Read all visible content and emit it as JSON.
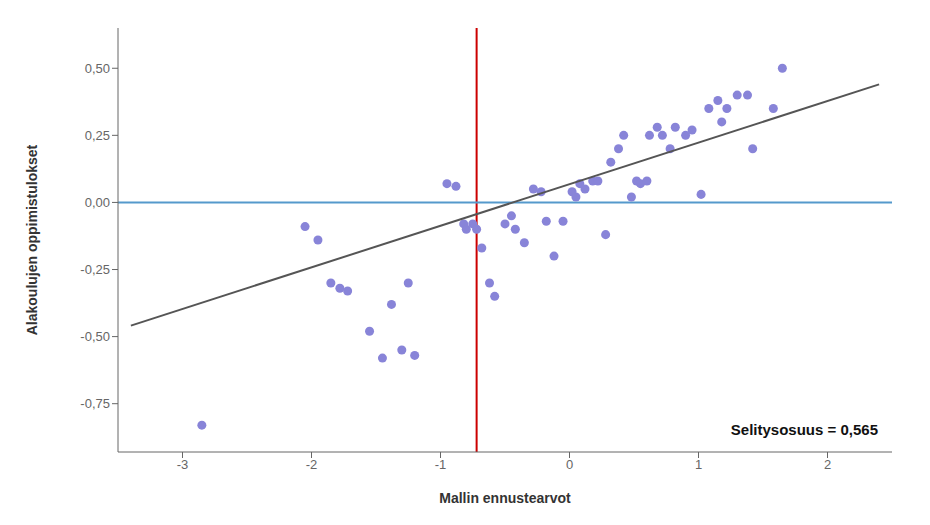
{
  "chart_data": {
    "type": "scatter",
    "xlabel": "Mallin ennustearvot",
    "ylabel": "Alakoulujen oppimistulokset",
    "annotation": "Selitysosuus = 0,565",
    "xlim": [
      -3.5,
      2.5
    ],
    "ylim": [
      -0.93,
      0.65
    ],
    "xticks": [
      -3,
      -2,
      -1,
      0,
      1,
      2
    ],
    "yticks": [
      {
        "value": -0.75,
        "label": "-0,75"
      },
      {
        "value": -0.5,
        "label": "-0,50"
      },
      {
        "value": -0.25,
        "label": "-0,25"
      },
      {
        "value": 0,
        "label": "0,00"
      },
      {
        "value": 0.25,
        "label": "0,25"
      },
      {
        "value": 0.5,
        "label": "0,50"
      }
    ],
    "grid": false,
    "series": [
      {
        "type": "scatter",
        "color": "#8884d8",
        "x": [
          -2.85,
          -2.05,
          -1.95,
          -1.85,
          -1.78,
          -1.72,
          -1.55,
          -1.45,
          -1.38,
          -1.3,
          -1.25,
          -1.2,
          -0.95,
          -0.88,
          -0.82,
          -0.8,
          -0.75,
          -0.72,
          -0.68,
          -0.62,
          -0.58,
          -0.5,
          -0.45,
          -0.42,
          -0.35,
          -0.28,
          -0.22,
          -0.18,
          -0.12,
          -0.05,
          0.02,
          0.05,
          0.08,
          0.12,
          0.18,
          0.22,
          0.28,
          0.32,
          0.38,
          0.42,
          0.48,
          0.52,
          0.55,
          0.6,
          0.62,
          0.68,
          0.72,
          0.78,
          0.82,
          0.9,
          0.95,
          1.02,
          1.08,
          1.15,
          1.18,
          1.22,
          1.3,
          1.38,
          1.42,
          1.58,
          1.65
        ],
        "values": [
          -0.83,
          -0.09,
          -0.14,
          -0.3,
          -0.32,
          -0.33,
          -0.48,
          -0.58,
          -0.38,
          -0.55,
          -0.3,
          -0.57,
          0.07,
          0.06,
          -0.08,
          -0.1,
          -0.08,
          -0.1,
          -0.17,
          -0.3,
          -0.35,
          -0.08,
          -0.05,
          -0.1,
          -0.15,
          0.05,
          0.04,
          -0.07,
          -0.2,
          -0.07,
          0.04,
          0.02,
          0.07,
          0.05,
          0.08,
          0.08,
          -0.12,
          0.15,
          0.2,
          0.25,
          0.02,
          0.08,
          0.07,
          0.08,
          0.25,
          0.28,
          0.25,
          0.2,
          0.28,
          0.25,
          0.27,
          0.03,
          0.35,
          0.38,
          0.3,
          0.35,
          0.4,
          0.4,
          0.2,
          0.35,
          0.5
        ]
      },
      {
        "type": "line",
        "color": "#555555",
        "x": [
          -3.4,
          2.4
        ],
        "values": [
          -0.459,
          0.44
        ]
      }
    ],
    "reference_lines": [
      {
        "axis": "x",
        "value": -0.72,
        "color": "#cc0000"
      },
      {
        "axis": "y",
        "value": 0,
        "color": "#5599cc"
      }
    ]
  }
}
